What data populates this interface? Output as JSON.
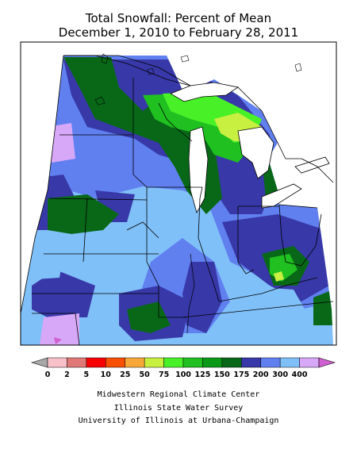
{
  "title": {
    "line1": "Total Snowfall: Percent of Mean",
    "line2": "December 1, 2010 to February 28, 2011"
  },
  "legend": {
    "bins": [
      {
        "label": "0",
        "color": "#a8a8a8"
      },
      {
        "label": "2",
        "color": "#f8c0c8"
      },
      {
        "label": "5",
        "color": "#e07878"
      },
      {
        "label": "10",
        "color": "#f80000"
      },
      {
        "label": "25",
        "color": "#f85000"
      },
      {
        "label": "50",
        "color": "#f8a838"
      },
      {
        "label": "75",
        "color": "#c8f040"
      },
      {
        "label": "100",
        "color": "#48f028"
      },
      {
        "label": "125",
        "color": "#20c020"
      },
      {
        "label": "150",
        "color": "#0a9a18"
      },
      {
        "label": "175",
        "color": "#086818"
      },
      {
        "label": "200",
        "color": "#3838a8"
      },
      {
        "label": "300",
        "color": "#6080f0"
      },
      {
        "label": "400",
        "color": "#80c0f8"
      }
    ],
    "end_color": "#d060d0",
    "last_bin_color": "#d8a8f8"
  },
  "credits": {
    "line1": "Midwestern Regional Climate Center",
    "line2": "Illinois State Water Survey",
    "line3": "University of Illinois at Urbana-Champaign"
  }
}
